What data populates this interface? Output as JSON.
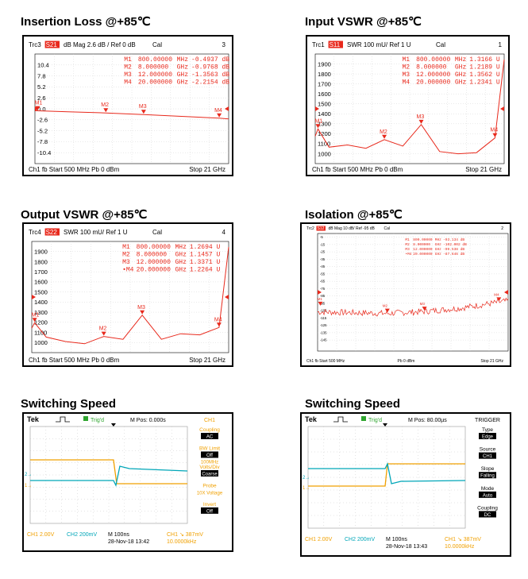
{
  "chart_data": [
    {
      "type": "line",
      "title": "Insertion Loss @+85℃",
      "header": {
        "trace": "Trc3",
        "param": "S21",
        "format": "dB Mag",
        "scale": "2.6 dB /",
        "ref": "Ref 0 dB",
        "cal": "Cal",
        "index": "3"
      },
      "yticks": [
        "10.4",
        "7.8",
        "5.2",
        "2.6",
        "0.0",
        "-2.6",
        "-5.2",
        "-7.8",
        "-10.4"
      ],
      "ylim": [
        -13,
        13
      ],
      "x_range_ghz": [
        0.5,
        21
      ],
      "markers": [
        {
          "label": "M1",
          "freq": "800.00000",
          "unit": "MHz",
          "value": "-0.4937 dB",
          "x": 0.8,
          "y": -0.49
        },
        {
          "label": "M2",
          "freq": "8.000000",
          "unit": "GHz",
          "value": "-0.9768 dB",
          "x": 8,
          "y": -0.98
        },
        {
          "label": "M3",
          "freq": "12.000000",
          "unit": "GHz",
          "value": "-1.3563 dB",
          "x": 12,
          "y": -1.36
        },
        {
          "label": "M4",
          "freq": "20.000000",
          "unit": "GHz",
          "value": "-2.2154 dB",
          "x": 20,
          "y": -2.22
        }
      ],
      "series": [
        {
          "x": [
            0.5,
            4,
            8,
            12,
            16,
            20,
            21
          ],
          "y": [
            -0.45,
            -0.7,
            -0.98,
            -1.36,
            -1.8,
            -2.22,
            -2.4
          ]
        }
      ],
      "footer": {
        "left": "Ch1  fb  Start  500 MHz   Pb   0 dBm",
        "right": "Stop  21 GHz"
      },
      "colors": {
        "trace": "#e8291c"
      }
    },
    {
      "type": "line",
      "title": "Input VSWR @+85℃",
      "header": {
        "trace": "Trc1",
        "param": "S11",
        "format": "SWR",
        "scale": "100 mU/",
        "ref": "Ref 1 U",
        "cal": "Cal",
        "index": "1"
      },
      "yticks": [
        "1900",
        "1800",
        "1700",
        "1600",
        "1500",
        "1400",
        "1300",
        "1200",
        "1100",
        "1000"
      ],
      "ylim": [
        1000,
        2000
      ],
      "markers": [
        {
          "label": "M1",
          "freq": "800.00000",
          "unit": "MHz",
          "value": "1.3166 U",
          "x": 0.8,
          "y": 1.3166
        },
        {
          "label": "M2",
          "freq": "8.000000",
          "unit": "GHz",
          "value": "1.2189 U",
          "x": 8,
          "y": 1.2189
        },
        {
          "label": "M3",
          "freq": "12.000000",
          "unit": "GHz",
          "value": "1.3562 U",
          "x": 12,
          "y": 1.3562
        },
        {
          "label": "M4",
          "freq": "20.000000",
          "unit": "GHz",
          "value": "1.2341 U",
          "x": 20,
          "y": 1.2341
        }
      ],
      "series": [
        {
          "x": [
            0.5,
            0.8,
            2,
            4,
            6,
            8,
            10,
            12,
            14,
            16,
            18,
            20,
            21
          ],
          "y": [
            1.25,
            1.3166,
            1.15,
            1.17,
            1.14,
            1.2189,
            1.16,
            1.3562,
            1.11,
            1.09,
            1.1,
            1.2341,
            1.95
          ]
        }
      ],
      "footer": {
        "left": "Ch1  fb  Start  500 MHz   Pb   0 dBm",
        "right": "Stop  21 GHz"
      },
      "colors": {
        "trace": "#e8291c"
      }
    },
    {
      "type": "line",
      "title": "Output VSWR @+85℃",
      "header": {
        "trace": "Trc4",
        "param": "S22",
        "format": "SWR",
        "scale": "100 mU/",
        "ref": "Ref 1 U",
        "cal": "Cal",
        "index": "4"
      },
      "yticks": [
        "1900",
        "1800",
        "1700",
        "1600",
        "1500",
        "1400",
        "1300",
        "1200",
        "1100",
        "1000"
      ],
      "ylim": [
        1000,
        2000
      ],
      "markers": [
        {
          "label": "M1",
          "freq": "800.00000",
          "unit": "MHz",
          "value": "1.2694 U",
          "x": 0.8,
          "y": 1.2694
        },
        {
          "label": "M2",
          "freq": "8.000000",
          "unit": "GHz",
          "value": "1.1457 U",
          "x": 8,
          "y": 1.1457
        },
        {
          "label": "M3",
          "freq": "12.000000",
          "unit": "GHz",
          "value": "1.3371 U",
          "x": 12,
          "y": 1.3371
        },
        {
          "label": "•M4",
          "freq": "20.000000",
          "unit": "GHz",
          "value": "1.2264 U",
          "x": 20,
          "y": 1.2264
        }
      ],
      "series": [
        {
          "x": [
            0.5,
            0.8,
            2,
            4,
            6,
            8,
            10,
            12,
            14,
            16,
            18,
            20,
            21
          ],
          "y": [
            1.22,
            1.2694,
            1.14,
            1.1,
            1.08,
            1.1457,
            1.12,
            1.3371,
            1.12,
            1.17,
            1.16,
            1.2264,
            1.95
          ]
        }
      ],
      "footer": {
        "left": "Ch1  fb  Start  500 MHz   Pb   0 dBm",
        "right": "Stop  21 GHz"
      },
      "colors": {
        "trace": "#e8291c"
      }
    },
    {
      "type": "line",
      "title": "Isolation @+85℃",
      "header": {
        "trace": "Trc2",
        "param": "S12",
        "format": "dB Mag",
        "scale": "10 dB/",
        "ref": "Ref -95 dB",
        "cal": "Cal",
        "index": "2"
      },
      "yticks": [
        "-5",
        "-15",
        "-25",
        "-35",
        "-45",
        "-55",
        "-65",
        "-75",
        "-85",
        "-95",
        "-105",
        "-115",
        "-125",
        "-135",
        "-145"
      ],
      "ylim": [
        -150,
        0
      ],
      "markers": [
        {
          "label": "M1",
          "freq": "800.00000",
          "unit": "MHz",
          "value": "-93.134 dB",
          "x": 0.8,
          "y": -93.1
        },
        {
          "label": "M2",
          "freq": "8.000000",
          "unit": "GHz",
          "value": "-102.002 dB",
          "x": 8,
          "y": -102
        },
        {
          "label": "M3",
          "freq": "12.000000",
          "unit": "GHz",
          "value": "-99.538 dB",
          "x": 12,
          "y": -99.5
        },
        {
          "label": "•M4",
          "freq": "20.000000",
          "unit": "GHz",
          "value": "-87.646 dB",
          "x": 20,
          "y": -87.6
        }
      ],
      "series": [
        {
          "x": [
            0.5,
            4,
            8,
            12,
            16,
            20,
            21
          ],
          "y": [
            -100,
            -101,
            -102,
            -99.5,
            -95,
            -87.6,
            -86
          ]
        }
      ],
      "footer": {
        "left": "Ch1  fb  Start  500 MHz",
        "mid": "Pb  0 dBm",
        "right": "Stop  21 GHz"
      },
      "colors": {
        "trace": "#e8291c"
      }
    }
  ],
  "scopes": [
    {
      "title": "Switching Speed",
      "brand": "Tek",
      "status": "Trig'd",
      "mpos": "M Pos: 0.000s",
      "menu_title": "CH1",
      "menu": [
        {
          "label": "Coupling",
          "value": "AC"
        },
        {
          "label": "BW Limit",
          "value": "Off",
          "sub": "100MHz"
        },
        {
          "label": "Volts/Div",
          "value": "Coarse"
        },
        {
          "label": "Probe",
          "sub": "10X Voltage"
        },
        {
          "label": "Invert",
          "value": "Off"
        }
      ],
      "ch1": "CH1  2.00V",
      "ch2": "CH2  200mV",
      "time": "M 100ns",
      "date": "28-Nov-18 13:42",
      "trig": "CH1 ↘ 387mV",
      "freq": "10.0000kHz",
      "colors": {
        "ch1": "#f0a000",
        "ch2": "#00a6b8"
      }
    },
    {
      "title": "Switching Speed",
      "brand": "Tek",
      "status": "Trig'd",
      "mpos": "M Pos: 80.00µs",
      "menu_title": "TRIGGER",
      "menu": [
        {
          "label": "Type",
          "value": "Edge"
        },
        {
          "label": "Source",
          "value": "CH1"
        },
        {
          "label": "Slope",
          "value": "Falling"
        },
        {
          "label": "Mode",
          "value": "Auto"
        },
        {
          "label": "Coupling",
          "value": "DC"
        }
      ],
      "ch1": "CH1  2.00V",
      "ch2": "CH2  200mV",
      "time": "M 100ns",
      "date": "28-Nov-18 13:43",
      "trig": "CH1 ↘ 387mV",
      "freq": "10.0000kHz",
      "colors": {
        "ch1": "#f0a000",
        "ch2": "#00a6b8"
      }
    }
  ]
}
